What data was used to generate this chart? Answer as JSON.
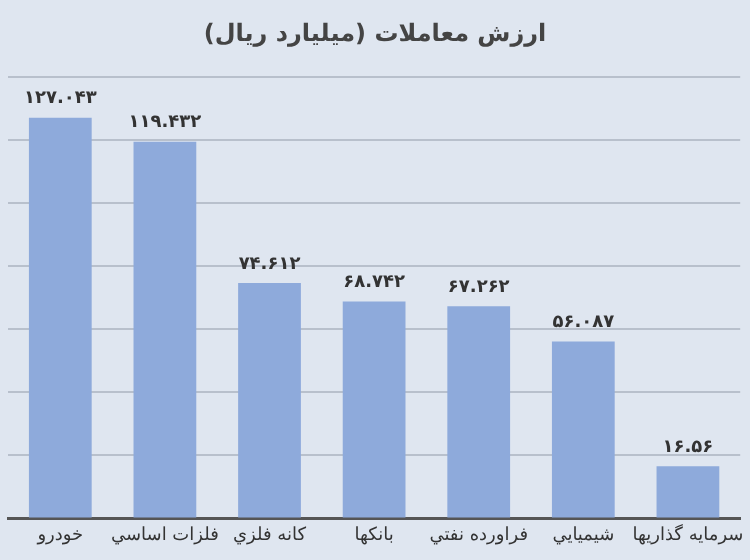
{
  "chart_data": {
    "type": "bar",
    "title": "ارزش معاملات (میلیارد ریال)",
    "categories": [
      "خودرو",
      "فلزات اساسي",
      "كانه فلزي",
      "بانكها",
      "فراورده نفتي",
      "شيميايي",
      "سرمایه گذاريها"
    ],
    "values": [
      127.043,
      119.432,
      74.612,
      68.742,
      67.262,
      56.087,
      16.56
    ],
    "value_labels": [
      "۱۲۷.۰۴۳",
      "۱۱۹.۴۳۲",
      "۷۴.۶۱۲",
      "۶۸.۷۴۲",
      "۶۷.۲۶۲",
      "۵۶.۰۸۷",
      "۱۶.۵۶"
    ],
    "color": "#8eaadb",
    "ylim": [
      0,
      140
    ],
    "yticks": [
      {
        "value": 0,
        "label": null
      },
      {
        "value": 20,
        "label": null
      },
      {
        "value": 40,
        "label": null
      },
      {
        "value": 60,
        "label": null
      },
      {
        "value": 80,
        "label": null
      },
      {
        "value": 100,
        "label": null
      },
      {
        "value": 120,
        "label": null
      },
      {
        "value": 140,
        "label": null
      }
    ],
    "grid": "y",
    "legend": false,
    "tick_labels": "x"
  }
}
